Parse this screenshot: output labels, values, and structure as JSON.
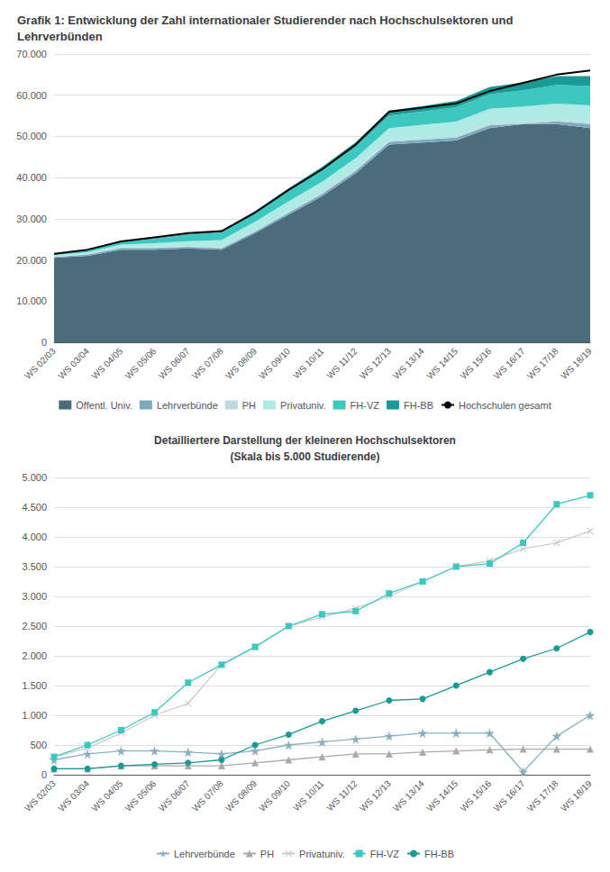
{
  "chart_data": [
    {
      "type": "area",
      "title": "Grafik 1: Entwicklung der Zahl internationaler Studierender nach Hochschulsektoren und Lehrverbünden",
      "categories": [
        "WS 02/03",
        "WS 03/04",
        "WS 04/05",
        "WS 05/06",
        "WS 06/07",
        "WS 07/08",
        "WS 08/09",
        "WS 09/10",
        "WS 10/11",
        "WS 11/12",
        "WS 12/13",
        "WS 13/14",
        "WS 14/15",
        "WS 15/16",
        "WS 16/17",
        "WS 17/18",
        "WS 18/19"
      ],
      "series": [
        {
          "name": "Öffentl. Univ.",
          "type": "area",
          "color": "#4a6c7c",
          "values": [
            20500,
            21000,
            22500,
            22500,
            22800,
            22500,
            26500,
            31000,
            35500,
            41000,
            48000,
            48500,
            49000,
            52000,
            53000,
            53000,
            52000
          ]
        },
        {
          "name": "Lehrverbünde",
          "type": "area",
          "color": "#7aaabb",
          "values": [
            250,
            350,
            400,
            400,
            380,
            350,
            400,
            500,
            550,
            600,
            650,
            700,
            700,
            700,
            50,
            650,
            1000
          ]
        },
        {
          "name": "PH",
          "type": "area",
          "color": "#c0d8e0",
          "values": [
            100,
            100,
            150,
            150,
            150,
            150,
            200,
            250,
            300,
            350,
            350,
            380,
            400,
            420,
            430,
            430,
            430
          ]
        },
        {
          "name": "Privatuniv.",
          "type": "area",
          "color": "#b0eae4",
          "values": [
            300,
            450,
            700,
            1000,
            1200,
            1850,
            2150,
            2500,
            2650,
            2800,
            3000,
            3250,
            3500,
            3600,
            3800,
            3900,
            4100
          ]
        },
        {
          "name": "FH-VZ",
          "type": "area",
          "color": "#3cc8c0",
          "values": [
            300,
            500,
            750,
            1050,
            1550,
            1850,
            2150,
            2500,
            2700,
            2750,
            3050,
            3250,
            3500,
            3550,
            3900,
            4550,
            4700
          ]
        },
        {
          "name": "FH-BB",
          "type": "area",
          "color": "#1a9a94",
          "values": [
            100,
            100,
            150,
            175,
            200,
            250,
            500,
            675,
            900,
            1075,
            1250,
            1275,
            1500,
            1725,
            1950,
            2125,
            2400
          ]
        },
        {
          "name": "Hochschulen gesamt",
          "type": "line",
          "color": "#000000",
          "values": [
            21500,
            22500,
            24500,
            25500,
            26500,
            27000,
            31500,
            37000,
            42000,
            48000,
            56000,
            57000,
            58000,
            61000,
            63000,
            65000,
            66000
          ]
        }
      ],
      "stacked": true,
      "ylim": [
        0,
        70000
      ],
      "yticks": [
        0,
        {
          "value": 10000,
          "label": "10.000"
        },
        {
          "value": 20000,
          "label": "20.000"
        },
        {
          "value": 30000,
          "label": "30.000"
        },
        {
          "value": 40000,
          "label": "40.000"
        },
        {
          "value": 50000,
          "label": "50.000"
        },
        {
          "value": 60000,
          "label": "60.000"
        },
        {
          "value": 70000,
          "label": "70.000"
        }
      ],
      "grid": true,
      "legend": "bottom"
    },
    {
      "type": "line",
      "title": "Detailliertere Darstellung der kleineren Hochschulsektoren",
      "subtitle": "(Skala bis 5.000 Studierende)",
      "categories": [
        "WS 02/03",
        "WS 03/04",
        "WS 04/05",
        "WS 05/06",
        "WS 06/07",
        "WS 07/08",
        "WS 08/09",
        "WS 09/10",
        "WS 10/11",
        "WS 11/12",
        "WS 12/13",
        "WS 13/14",
        "WS 14/15",
        "WS 15/16",
        "WS 16/17",
        "WS 17/18",
        "WS 18/19"
      ],
      "series": [
        {
          "name": "Lehrverbünde",
          "color": "#8ab0c0",
          "marker": "star",
          "values": [
            250,
            350,
            400,
            400,
            380,
            350,
            400,
            500,
            550,
            600,
            650,
            700,
            700,
            700,
            50,
            650,
            1000
          ]
        },
        {
          "name": "PH",
          "color": "#aaaaaa",
          "marker": "triangle",
          "values": [
            100,
            100,
            150,
            150,
            150,
            150,
            200,
            250,
            300,
            350,
            350,
            380,
            400,
            420,
            430,
            430,
            430
          ]
        },
        {
          "name": "Privatuniv.",
          "color": "#cccccc",
          "marker": "x",
          "values": [
            300,
            450,
            700,
            1000,
            1200,
            1850,
            2150,
            2500,
            2650,
            2800,
            3000,
            3250,
            3500,
            3600,
            3800,
            3900,
            4100
          ]
        },
        {
          "name": "FH-VZ",
          "color": "#3cc8c0",
          "marker": "square",
          "values": [
            300,
            500,
            750,
            1050,
            1550,
            1850,
            2150,
            2500,
            2700,
            2750,
            3050,
            3250,
            3500,
            3550,
            3900,
            4550,
            4700
          ]
        },
        {
          "name": "FH-BB",
          "color": "#1a9a94",
          "marker": "circle",
          "values": [
            100,
            100,
            150,
            175,
            200,
            250,
            500,
            675,
            900,
            1075,
            1250,
            1275,
            1500,
            1725,
            1950,
            2125,
            2400
          ]
        }
      ],
      "ylim": [
        0,
        5000
      ],
      "yticks": [
        0,
        500,
        {
          "value": 1000,
          "label": "1.000"
        },
        {
          "value": 1500,
          "label": "1.500"
        },
        {
          "value": 2000,
          "label": "2.000"
        },
        {
          "value": 2500,
          "label": "2.500"
        },
        {
          "value": 3000,
          "label": "3.000"
        },
        {
          "value": 3500,
          "label": "3.500"
        },
        {
          "value": 4000,
          "label": "4.000"
        },
        {
          "value": 4500,
          "label": "4.500"
        },
        {
          "value": 5000,
          "label": "5.000"
        }
      ],
      "grid": true,
      "legend": "bottom"
    }
  ]
}
